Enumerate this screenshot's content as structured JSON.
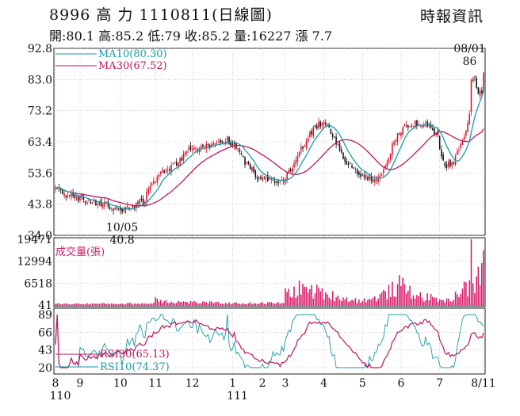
{
  "header": {
    "title": "8996  高   力 1110811(日線圖)",
    "source": "時報資訊",
    "quote": "開:80.1 高:85.2 低:79 收:85.2 量:16227 漲 7.7"
  },
  "colors": {
    "up": "#e0102a",
    "down": "#111111",
    "ma10": "#1a9aa8",
    "ma30": "#c0145c",
    "volume": "#d81b6a",
    "grid": "#b0b0b0"
  },
  "chart_data": [
    {
      "type": "candlestick",
      "ylim": [
        34.0,
        92.8
      ],
      "yticks": [
        92.8,
        83.0,
        73.2,
        63.4,
        53.6,
        43.8,
        34.0
      ],
      "x_tick_labels": [
        {
          "label": "8",
          "sublabel": "110",
          "index": 0
        },
        {
          "label": "9",
          "index": 14
        },
        {
          "label": "10",
          "index": 37
        },
        {
          "label": "11",
          "index": 57
        },
        {
          "label": "12",
          "index": 78
        },
        {
          "label": "1",
          "sublabel": "111",
          "index": 101
        },
        {
          "label": "2",
          "index": 118
        },
        {
          "label": "3",
          "index": 131
        },
        {
          "label": "4",
          "index": 153
        },
        {
          "label": "5",
          "index": 175
        },
        {
          "label": "6",
          "index": 197
        },
        {
          "label": "7",
          "index": 219
        },
        {
          "label": "8/11",
          "index": 244
        }
      ],
      "legend": [
        {
          "name": "MA10(80.30)",
          "color": "#1a9aa8"
        },
        {
          "name": "MA30(67.52)",
          "color": "#c0145c"
        }
      ],
      "annotations": [
        {
          "text": "10/05",
          "sub": "40.8",
          "index": 38,
          "value": 40.8,
          "position": "below"
        },
        {
          "text": "08/01",
          "sub": "86",
          "index": 237,
          "value": 86,
          "position": "above"
        }
      ],
      "anchors": [
        [
          0,
          48.5
        ],
        [
          8,
          46.5
        ],
        [
          15,
          45.5
        ],
        [
          22,
          44.0
        ],
        [
          30,
          43.5
        ],
        [
          38,
          41.2
        ],
        [
          44,
          43.5
        ],
        [
          50,
          44.5
        ],
        [
          54,
          49.0
        ],
        [
          58,
          52.5
        ],
        [
          64,
          55.0
        ],
        [
          70,
          57.0
        ],
        [
          76,
          61.5
        ],
        [
          82,
          61.0
        ],
        [
          88,
          62.5
        ],
        [
          94,
          63.2
        ],
        [
          98,
          64.0
        ],
        [
          102,
          62.5
        ],
        [
          106,
          58.5
        ],
        [
          110,
          55.5
        ],
        [
          114,
          53.2
        ],
        [
          118,
          51.5
        ],
        [
          124,
          50.8
        ],
        [
          128,
          50.2
        ],
        [
          132,
          53.0
        ],
        [
          136,
          56.0
        ],
        [
          140,
          61.5
        ],
        [
          144,
          65.0
        ],
        [
          148,
          68.0
        ],
        [
          152,
          69.5
        ],
        [
          156,
          68.0
        ],
        [
          160,
          63.5
        ],
        [
          164,
          58.0
        ],
        [
          168,
          55.5
        ],
        [
          172,
          54.0
        ],
        [
          176,
          52.5
        ],
        [
          182,
          51.5
        ],
        [
          186,
          53.5
        ],
        [
          190,
          59.0
        ],
        [
          194,
          64.5
        ],
        [
          198,
          67.5
        ],
        [
          202,
          68.5
        ],
        [
          206,
          69.5
        ],
        [
          210,
          69.0
        ],
        [
          214,
          68.0
        ],
        [
          218,
          65.0
        ],
        [
          220,
          59.0
        ],
        [
          222,
          55.5
        ],
        [
          226,
          56.5
        ],
        [
          230,
          61.0
        ],
        [
          234,
          66.0
        ],
        [
          236,
          72.0
        ],
        [
          237,
          82.0
        ],
        [
          239,
          83.5
        ],
        [
          241,
          79.0
        ],
        [
          243,
          78.0
        ],
        [
          244,
          85.2
        ]
      ],
      "ma10_last": 80.3,
      "ma30_last": 67.52
    },
    {
      "type": "bar",
      "title": "成交量(張)",
      "yticks": [
        19471,
        12994,
        6518,
        41
      ],
      "ylim": [
        41,
        19471
      ],
      "volume_profile": [
        [
          0,
          500
        ],
        [
          55,
          600
        ],
        [
          57,
          2300
        ],
        [
          66,
          1300
        ],
        [
          100,
          700
        ],
        [
          130,
          800
        ],
        [
          131,
          4200
        ],
        [
          140,
          6200
        ],
        [
          150,
          4800
        ],
        [
          160,
          3200
        ],
        [
          170,
          1800
        ],
        [
          180,
          2000
        ],
        [
          188,
          4200
        ],
        [
          196,
          7200
        ],
        [
          208,
          3300
        ],
        [
          218,
          2200
        ],
        [
          224,
          1600
        ],
        [
          230,
          5000
        ],
        [
          236,
          6600
        ],
        [
          237,
          19471
        ],
        [
          239,
          8000
        ],
        [
          242,
          11000
        ],
        [
          244,
          16227
        ]
      ]
    },
    {
      "type": "line",
      "yticks": [
        89,
        66,
        43,
        20
      ],
      "ylim": [
        20,
        89
      ],
      "legend": [
        {
          "name": "RSI30(65.13)",
          "color": "#c0145c"
        },
        {
          "name": "RSI10(74.37)",
          "color": "#1a9aa8"
        }
      ]
    }
  ]
}
